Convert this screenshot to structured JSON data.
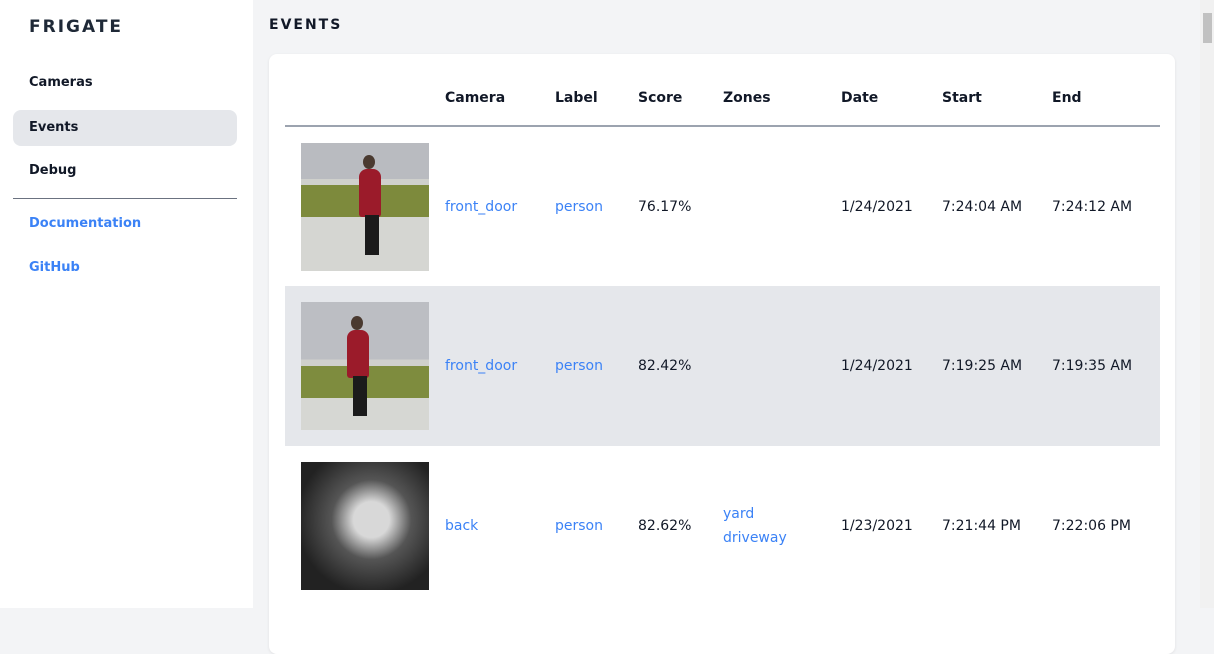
{
  "sidebar": {
    "logo": "FRIGATE",
    "items": [
      {
        "label": "Cameras"
      },
      {
        "label": "Events",
        "active": true
      },
      {
        "label": "Debug"
      }
    ],
    "links": [
      {
        "label": "Documentation"
      },
      {
        "label": "GitHub"
      }
    ]
  },
  "main": {
    "title": "EVENTS",
    "columns": [
      "",
      "Camera",
      "Label",
      "Score",
      "Zones",
      "Date",
      "Start",
      "End"
    ],
    "rows": [
      {
        "camera": "front_door",
        "label": "person",
        "score": "76.17%",
        "zones": [
          "",
          ""
        ],
        "date": "1/24/2021",
        "start": "7:24:04 AM",
        "end": "7:24:12 AM"
      },
      {
        "camera": "front_door",
        "label": "person",
        "score": "82.42%",
        "zones": [
          "",
          ""
        ],
        "date": "1/24/2021",
        "start": "7:19:25 AM",
        "end": "7:19:35 AM"
      },
      {
        "camera": "back",
        "label": "person",
        "score": "82.62%",
        "zones": [
          "yard",
          "driveway"
        ],
        "date": "1/23/2021",
        "start": "7:21:44 PM",
        "end": "7:22:06 PM"
      }
    ]
  },
  "colors": {
    "accent": "#3b82f6",
    "active_bg": "#e5e7eb",
    "page_bg": "#f3f4f6"
  }
}
